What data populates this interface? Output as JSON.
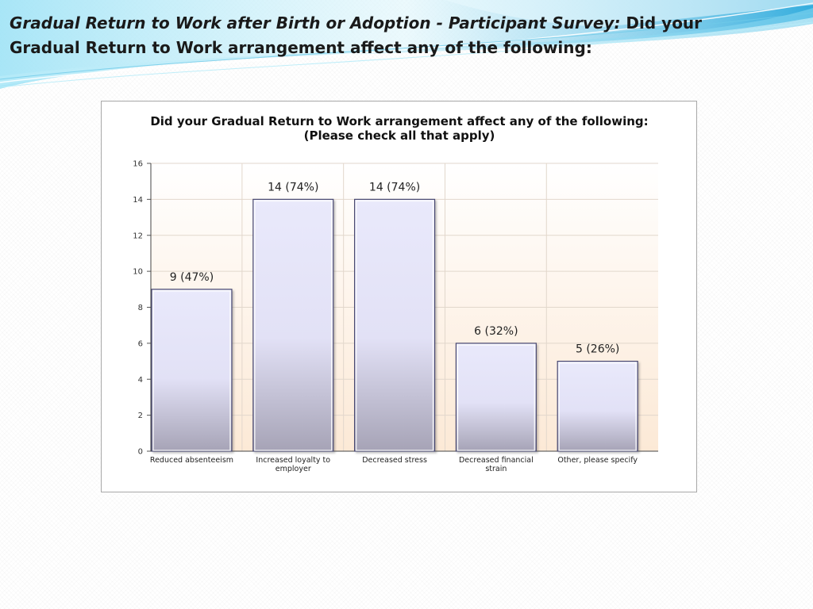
{
  "slide": {
    "title_bold": "Gradual Return to Work after Birth or Adoption - Participant Survey:",
    "title_rest": "Did your Gradual Return to Work arrangement affect any of the following:"
  },
  "colors": {
    "bar_top": "#e6e6fa",
    "bar_bottom": "#a6a3b6",
    "bar_edge": "#4a4a70",
    "plot_top": "#ffffff",
    "plot_bottom": "#fce9d6",
    "swoosh": "#4fc3e8"
  },
  "chart_data": {
    "type": "bar",
    "title": "Did your Gradual Return to Work arrangement affect any of the following:  (Please check all that apply)",
    "xlabel": "",
    "ylabel": "",
    "categories": [
      "Reduced absenteeism",
      "Increased loyalty to employer",
      "Decreased stress",
      "Decreased financial strain",
      "Other, please specify"
    ],
    "values": [
      9,
      14,
      14,
      6,
      5
    ],
    "data_labels": [
      "9 (47%)",
      "14 (74%)",
      "14 (74%)",
      "6 (32%)",
      "5 (26%)"
    ],
    "ylim": [
      0,
      16
    ],
    "yticks": [
      0,
      2,
      4,
      6,
      8,
      10,
      12,
      14,
      16
    ],
    "grid": true,
    "legend": "none"
  }
}
